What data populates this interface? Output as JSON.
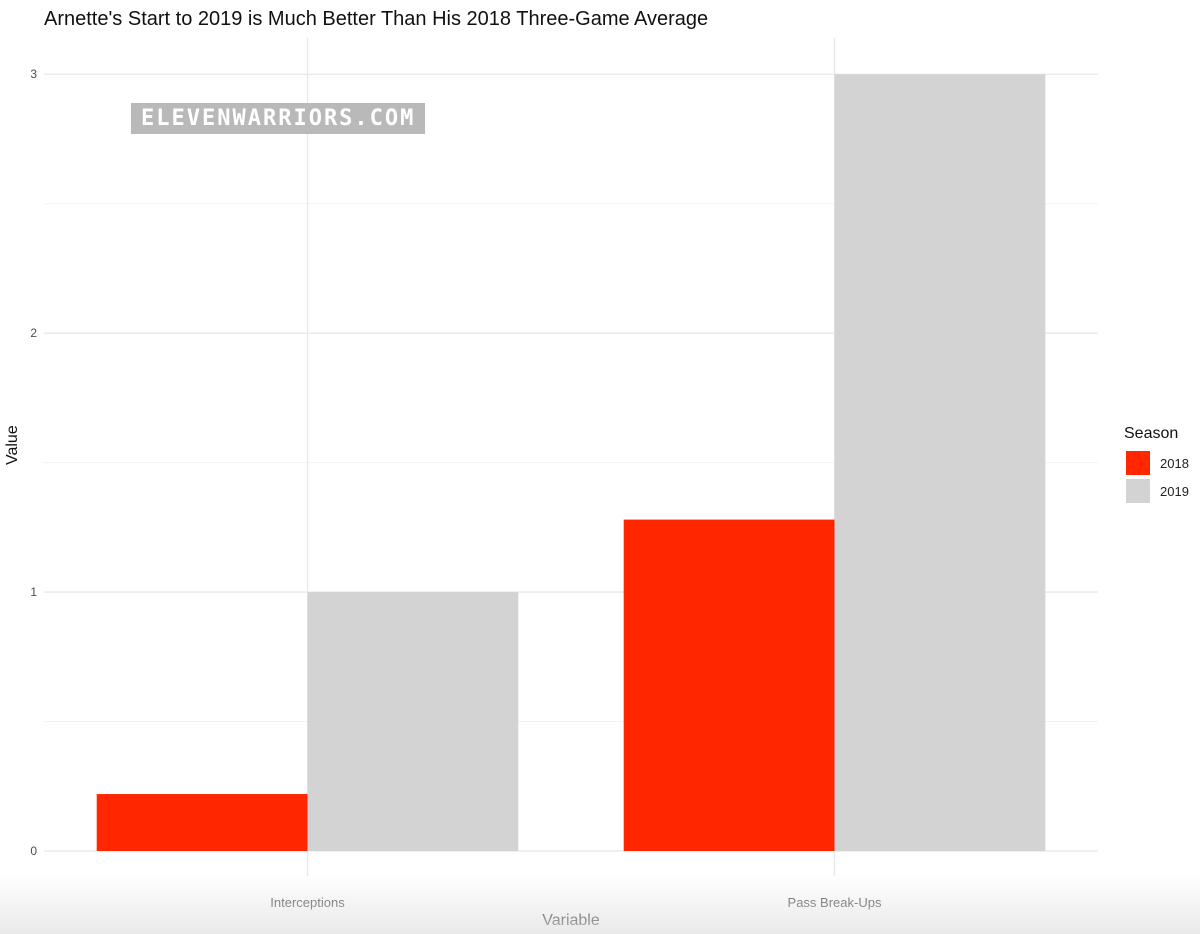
{
  "watermark": "ELEVENWARRIORS.COM",
  "chart_data": {
    "type": "bar",
    "title": "Arnette's Start to 2019 is Much Better Than His 2018 Three-Game Average",
    "xlabel": "Variable",
    "ylabel": "Value",
    "categories": [
      "Interceptions",
      "Pass Break-Ups"
    ],
    "series": [
      {
        "name": "2018",
        "values": [
          0.22,
          1.28
        ],
        "color": "#ff2600"
      },
      {
        "name": "2019",
        "values": [
          1,
          3
        ],
        "color": "#d3d3d3"
      }
    ],
    "ylim": [
      0,
      3.14
    ],
    "yticks": [
      0,
      1,
      2,
      3
    ],
    "grid": true,
    "legend": {
      "title": "Season",
      "position": "right"
    }
  }
}
